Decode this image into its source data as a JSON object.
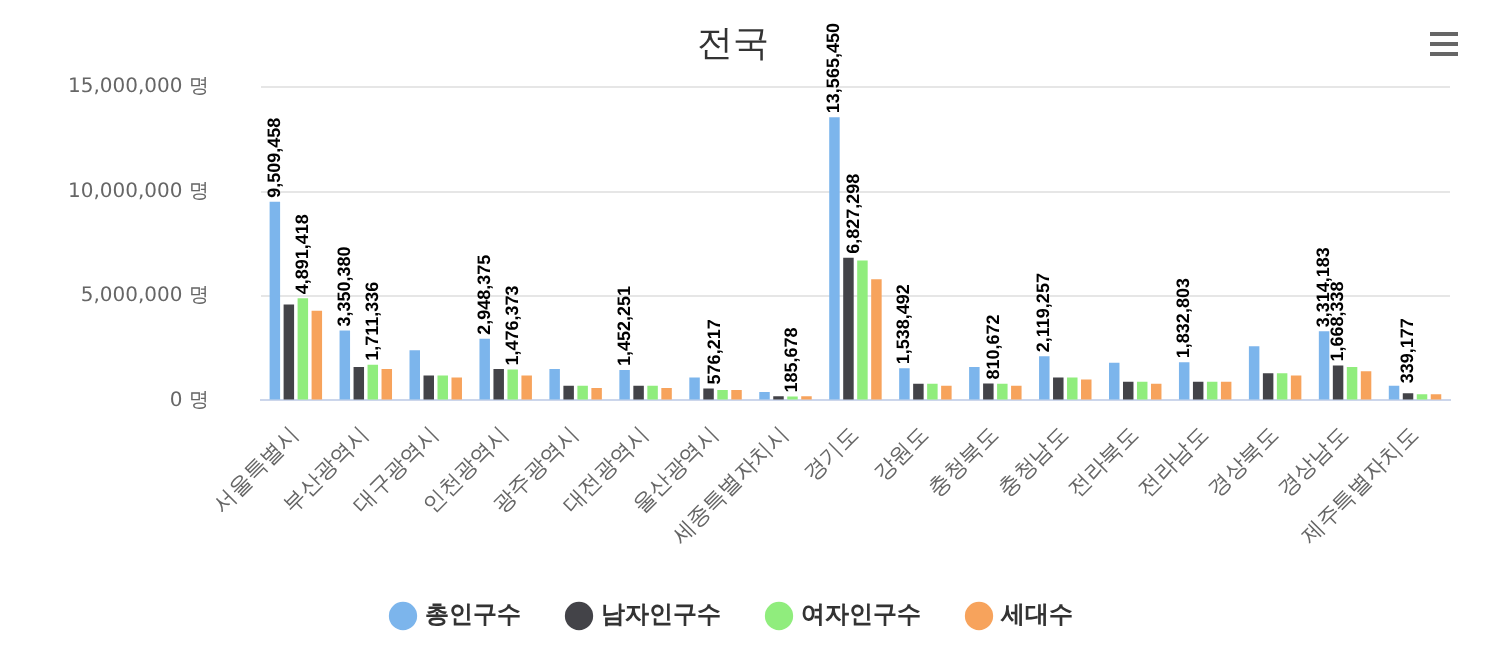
{
  "chart_data": {
    "type": "bar",
    "title": "전국",
    "categories": [
      "서울특별시",
      "부산광역시",
      "대구광역시",
      "인천광역시",
      "광주광역시",
      "대전광역시",
      "울산광역시",
      "세종특별자치시",
      "경기도",
      "강원도",
      "충청북도",
      "충청남도",
      "전라북도",
      "전라남도",
      "경상북도",
      "경상남도",
      "제주특별자치도"
    ],
    "series": [
      {
        "name": "총인구수",
        "color": "#7cb5ec",
        "values": [
          9509458,
          3350380,
          2400000,
          2948375,
          1500000,
          1452251,
          1100000,
          400000,
          13565450,
          1538492,
          1600000,
          2119257,
          1800000,
          1832803,
          2600000,
          3314183,
          700000
        ],
        "value_labels": [
          "9,509,458",
          "3,350,380",
          null,
          "2,948,375",
          null,
          "1,452,251",
          null,
          null,
          "13,565,450",
          "1,538,492",
          null,
          "2,119,257",
          null,
          "1,832,803",
          null,
          "3,314,183",
          null
        ]
      },
      {
        "name": "남자인구수",
        "color": "#434348",
        "values": [
          4600000,
          1600000,
          1200000,
          1500000,
          700000,
          700000,
          576217,
          200000,
          6827298,
          800000,
          810672,
          1100000,
          900000,
          900000,
          1300000,
          1668338,
          339177
        ],
        "value_labels": [
          null,
          null,
          null,
          null,
          null,
          null,
          "576,217",
          null,
          "6,827,298",
          null,
          "810,672",
          null,
          null,
          null,
          null,
          "1,668,338",
          "339,177"
        ]
      },
      {
        "name": "여자인구수",
        "color": "#90ed7d",
        "values": [
          4891418,
          1711336,
          1200000,
          1476373,
          700000,
          700000,
          500000,
          185678,
          6700000,
          800000,
          800000,
          1100000,
          900000,
          900000,
          1300000,
          1600000,
          300000
        ],
        "value_labels": [
          "4,891,418",
          "1,711,336",
          null,
          "1,476,373",
          null,
          null,
          null,
          "185,678",
          null,
          null,
          null,
          null,
          null,
          null,
          null,
          null,
          null
        ]
      },
      {
        "name": "세대수",
        "color": "#f7a35c",
        "values": [
          4300000,
          1500000,
          1100000,
          1200000,
          600000,
          600000,
          500000,
          200000,
          5800000,
          700000,
          700000,
          1000000,
          800000,
          900000,
          1200000,
          1400000,
          300000
        ]
      }
    ],
    "ylim": [
      0,
      15000000
    ],
    "yticks": [
      {
        "value": 0,
        "label": "0 명"
      },
      {
        "value": 5000000,
        "label": "5,000,000 명"
      },
      {
        "value": 10000000,
        "label": "10,000,000 명"
      },
      {
        "value": 15000000,
        "label": "15,000,000 명"
      }
    ],
    "grid": "y",
    "legend": "bottom",
    "marker": "circle"
  }
}
